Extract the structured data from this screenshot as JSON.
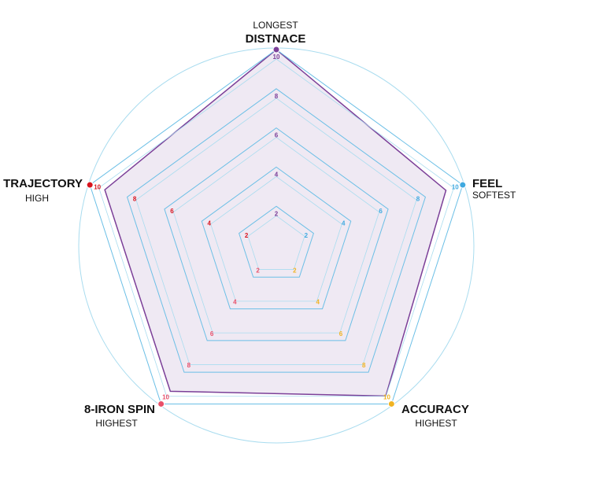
{
  "chart_data": {
    "type": "radar",
    "categories": [
      "DISTNACE",
      "FEEL",
      "ACCURACY",
      "8-IRON SPIN",
      "TRAJECTORY"
    ],
    "sublabels": [
      "LONGEST",
      "SOFTEST",
      "HIGHEST",
      "HIGHEST",
      "HIGH"
    ],
    "axis_colors": [
      "#7b3f98",
      "#3fa9e0",
      "#f0b323",
      "#e8506a",
      "#d7141e"
    ],
    "rlim": [
      0,
      10
    ],
    "rticks": [
      2,
      4,
      6,
      8,
      10
    ],
    "series": [
      {
        "color": "#7b3f98",
        "values": [
          10,
          9.1,
          9.5,
          9.2,
          9.2
        ]
      }
    ]
  }
}
